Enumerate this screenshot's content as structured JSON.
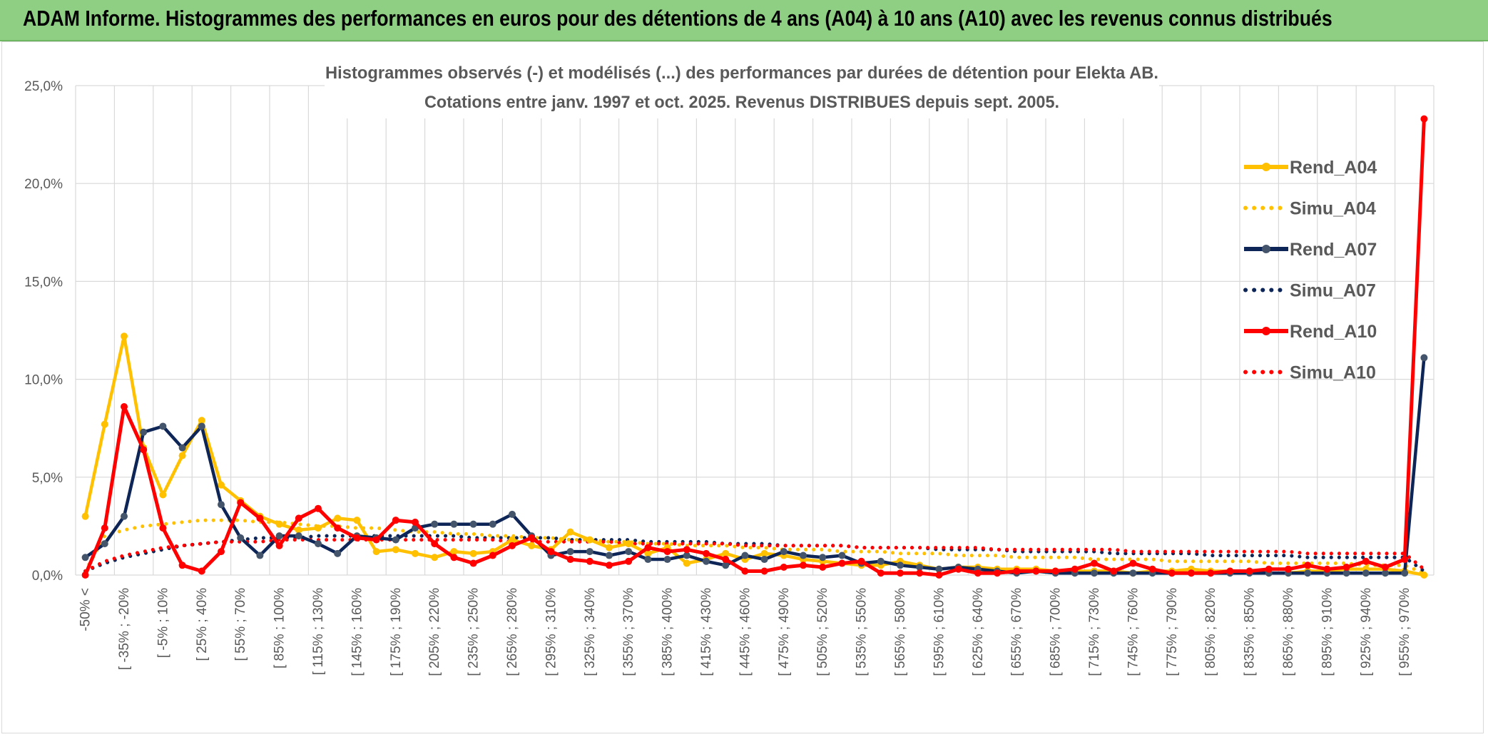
{
  "header": {
    "title": "ADAM Informe. Histogrammes des performances en euros pour des détentions de 4 ans (A04) à 10 ans (A10) avec les revenus connus distribués"
  },
  "chart_data": {
    "type": "line",
    "title_lines": [
      "Histogrammes observés (-) et modélisés (...) des performances par durées de détention pour Elekta AB.",
      "Cotations entre janv. 1997 et oct. 2025. Revenus DISTRIBUES depuis sept. 2005."
    ],
    "xlabel": "",
    "ylabel": "",
    "ylim": [
      0,
      25
    ],
    "yticks": [
      "0,0%",
      "5,0%",
      "10,0%",
      "15,0%",
      "20,0%",
      "25,0%"
    ],
    "grid": true,
    "legend_position": "right",
    "x_tick_labels": [
      "-50% <",
      "[ -35% ; -20%",
      "[ -5% ; 10%",
      "[ 25% ; 40%",
      "[ 55% ; 70%",
      "[ 85% ; 100%",
      "[ 115% ; 130%",
      "[ 145% ; 160%",
      "[ 175% ; 190%",
      "[ 205% ; 220%",
      "[ 235% ; 250%",
      "[ 265% ; 280%",
      "[ 295% ; 310%",
      "[ 325% ; 340%",
      "[ 355% ; 370%",
      "[ 385% ; 400%",
      "[ 415% ; 430%",
      "[ 445% ; 460%",
      "[ 475% ; 490%",
      "[ 505% ; 520%",
      "[ 535% ; 550%",
      "[ 565% ; 580%",
      "[ 595% ; 610%",
      "[ 625% ; 640%",
      "[ 655% ; 670%",
      "[ 685% ; 700%",
      "[ 715% ; 730%",
      "[ 745% ; 760%",
      "[ 775% ; 790%",
      "[ 805% ; 820%",
      "[ 835% ; 850%",
      "[ 865% ; 880%",
      "[ 895% ; 910%",
      "[ 925% ; 940%",
      "[ 955% ; 970%"
    ],
    "n_categories": 70,
    "series": [
      {
        "name": "Rend_A04",
        "style": "solid",
        "color": "#ffc000",
        "values": [
          3.0,
          7.7,
          12.2,
          6.5,
          4.1,
          6.1,
          7.9,
          4.6,
          3.8,
          3.0,
          2.6,
          2.3,
          2.4,
          2.9,
          2.8,
          1.2,
          1.3,
          1.1,
          0.9,
          1.2,
          1.1,
          1.2,
          1.8,
          1.5,
          1.3,
          2.2,
          1.8,
          1.4,
          1.6,
          1.1,
          1.4,
          0.6,
          0.8,
          1.1,
          0.8,
          1.1,
          1.0,
          0.8,
          0.7,
          0.6,
          0.5,
          0.5,
          0.7,
          0.5,
          0.3,
          0.4,
          0.4,
          0.3,
          0.3,
          0.3,
          0.2,
          0.2,
          0.2,
          0.2,
          0.1,
          0.2,
          0.2,
          0.3,
          0.2,
          0.2,
          0.2,
          0.1,
          0.1,
          0.2,
          0.2,
          0.3,
          0.3,
          0.3,
          0.2,
          0.0
        ]
      },
      {
        "name": "Simu_A04",
        "style": "dotted",
        "color": "#ffc000",
        "values": [
          0.2,
          2.0,
          2.3,
          2.5,
          2.6,
          2.7,
          2.8,
          2.8,
          2.8,
          2.7,
          2.7,
          2.6,
          2.5,
          2.5,
          2.4,
          2.4,
          2.3,
          2.2,
          2.2,
          2.1,
          2.1,
          2.0,
          2.0,
          1.9,
          1.9,
          1.8,
          1.8,
          1.7,
          1.7,
          1.6,
          1.6,
          1.5,
          1.5,
          1.5,
          1.4,
          1.4,
          1.3,
          1.3,
          1.3,
          1.2,
          1.2,
          1.2,
          1.1,
          1.1,
          1.1,
          1.0,
          1.0,
          1.0,
          0.9,
          0.9,
          0.9,
          0.9,
          0.8,
          0.8,
          0.8,
          0.8,
          0.7,
          0.7,
          0.7,
          0.7,
          0.7,
          0.6,
          0.6,
          0.6,
          0.6,
          0.6,
          0.5,
          0.5,
          0.5,
          0.1
        ]
      },
      {
        "name": "Rend_A07",
        "style": "solid",
        "color": "#0d2557",
        "values": [
          0.9,
          1.6,
          3.0,
          7.3,
          7.6,
          6.5,
          7.6,
          3.6,
          1.9,
          1.0,
          2.0,
          2.0,
          1.6,
          1.1,
          2.0,
          1.9,
          1.8,
          2.4,
          2.6,
          2.6,
          2.6,
          2.6,
          3.1,
          2.0,
          1.0,
          1.2,
          1.2,
          1.0,
          1.2,
          0.8,
          0.8,
          1.0,
          0.7,
          0.5,
          1.0,
          0.8,
          1.2,
          1.0,
          0.9,
          1.0,
          0.6,
          0.7,
          0.5,
          0.4,
          0.3,
          0.4,
          0.3,
          0.2,
          0.1,
          0.2,
          0.1,
          0.1,
          0.1,
          0.1,
          0.1,
          0.1,
          0.1,
          0.1,
          0.1,
          0.1,
          0.1,
          0.1,
          0.1,
          0.1,
          0.1,
          0.1,
          0.1,
          0.1,
          0.1,
          11.1
        ]
      },
      {
        "name": "Simu_A07",
        "style": "dotted",
        "color": "#0d2557",
        "values": [
          0.2,
          0.6,
          0.9,
          1.1,
          1.3,
          1.5,
          1.6,
          1.7,
          1.8,
          1.9,
          1.9,
          1.9,
          2.0,
          2.0,
          2.0,
          2.0,
          2.0,
          2.0,
          2.0,
          2.0,
          1.9,
          1.9,
          1.9,
          1.9,
          1.9,
          1.8,
          1.8,
          1.8,
          1.8,
          1.7,
          1.7,
          1.7,
          1.7,
          1.6,
          1.6,
          1.6,
          1.5,
          1.5,
          1.5,
          1.5,
          1.4,
          1.4,
          1.4,
          1.4,
          1.3,
          1.3,
          1.3,
          1.3,
          1.2,
          1.2,
          1.2,
          1.2,
          1.2,
          1.1,
          1.1,
          1.1,
          1.1,
          1.1,
          1.0,
          1.0,
          1.0,
          1.0,
          1.0,
          0.9,
          0.9,
          0.9,
          0.9,
          0.9,
          0.9,
          0.2
        ]
      },
      {
        "name": "Rend_A10",
        "style": "solid",
        "color": "#ff0000",
        "values": [
          0.0,
          2.4,
          8.6,
          6.4,
          2.4,
          0.5,
          0.2,
          1.2,
          3.7,
          2.9,
          1.5,
          2.9,
          3.4,
          2.4,
          1.9,
          1.8,
          2.8,
          2.7,
          1.6,
          0.9,
          0.6,
          1.0,
          1.5,
          1.9,
          1.2,
          0.8,
          0.7,
          0.5,
          0.7,
          1.4,
          1.2,
          1.3,
          1.1,
          0.8,
          0.2,
          0.2,
          0.4,
          0.5,
          0.4,
          0.6,
          0.7,
          0.1,
          0.1,
          0.1,
          0.0,
          0.3,
          0.1,
          0.1,
          0.2,
          0.2,
          0.2,
          0.3,
          0.6,
          0.2,
          0.6,
          0.3,
          0.1,
          0.1,
          0.1,
          0.2,
          0.2,
          0.3,
          0.3,
          0.5,
          0.3,
          0.4,
          0.7,
          0.4,
          0.8,
          23.3
        ]
      },
      {
        "name": "Simu_A10",
        "style": "dotted",
        "color": "#ff0000",
        "values": [
          0.2,
          0.7,
          1.0,
          1.2,
          1.4,
          1.5,
          1.6,
          1.7,
          1.7,
          1.7,
          1.8,
          1.8,
          1.8,
          1.8,
          1.8,
          1.8,
          1.8,
          1.8,
          1.8,
          1.8,
          1.8,
          1.8,
          1.7,
          1.7,
          1.7,
          1.7,
          1.7,
          1.7,
          1.6,
          1.6,
          1.6,
          1.6,
          1.6,
          1.6,
          1.5,
          1.5,
          1.5,
          1.5,
          1.5,
          1.5,
          1.4,
          1.4,
          1.4,
          1.4,
          1.4,
          1.4,
          1.4,
          1.3,
          1.3,
          1.3,
          1.3,
          1.3,
          1.3,
          1.3,
          1.2,
          1.2,
          1.2,
          1.2,
          1.2,
          1.2,
          1.2,
          1.2,
          1.2,
          1.1,
          1.1,
          1.1,
          1.1,
          1.1,
          1.1,
          0.3
        ]
      }
    ]
  }
}
